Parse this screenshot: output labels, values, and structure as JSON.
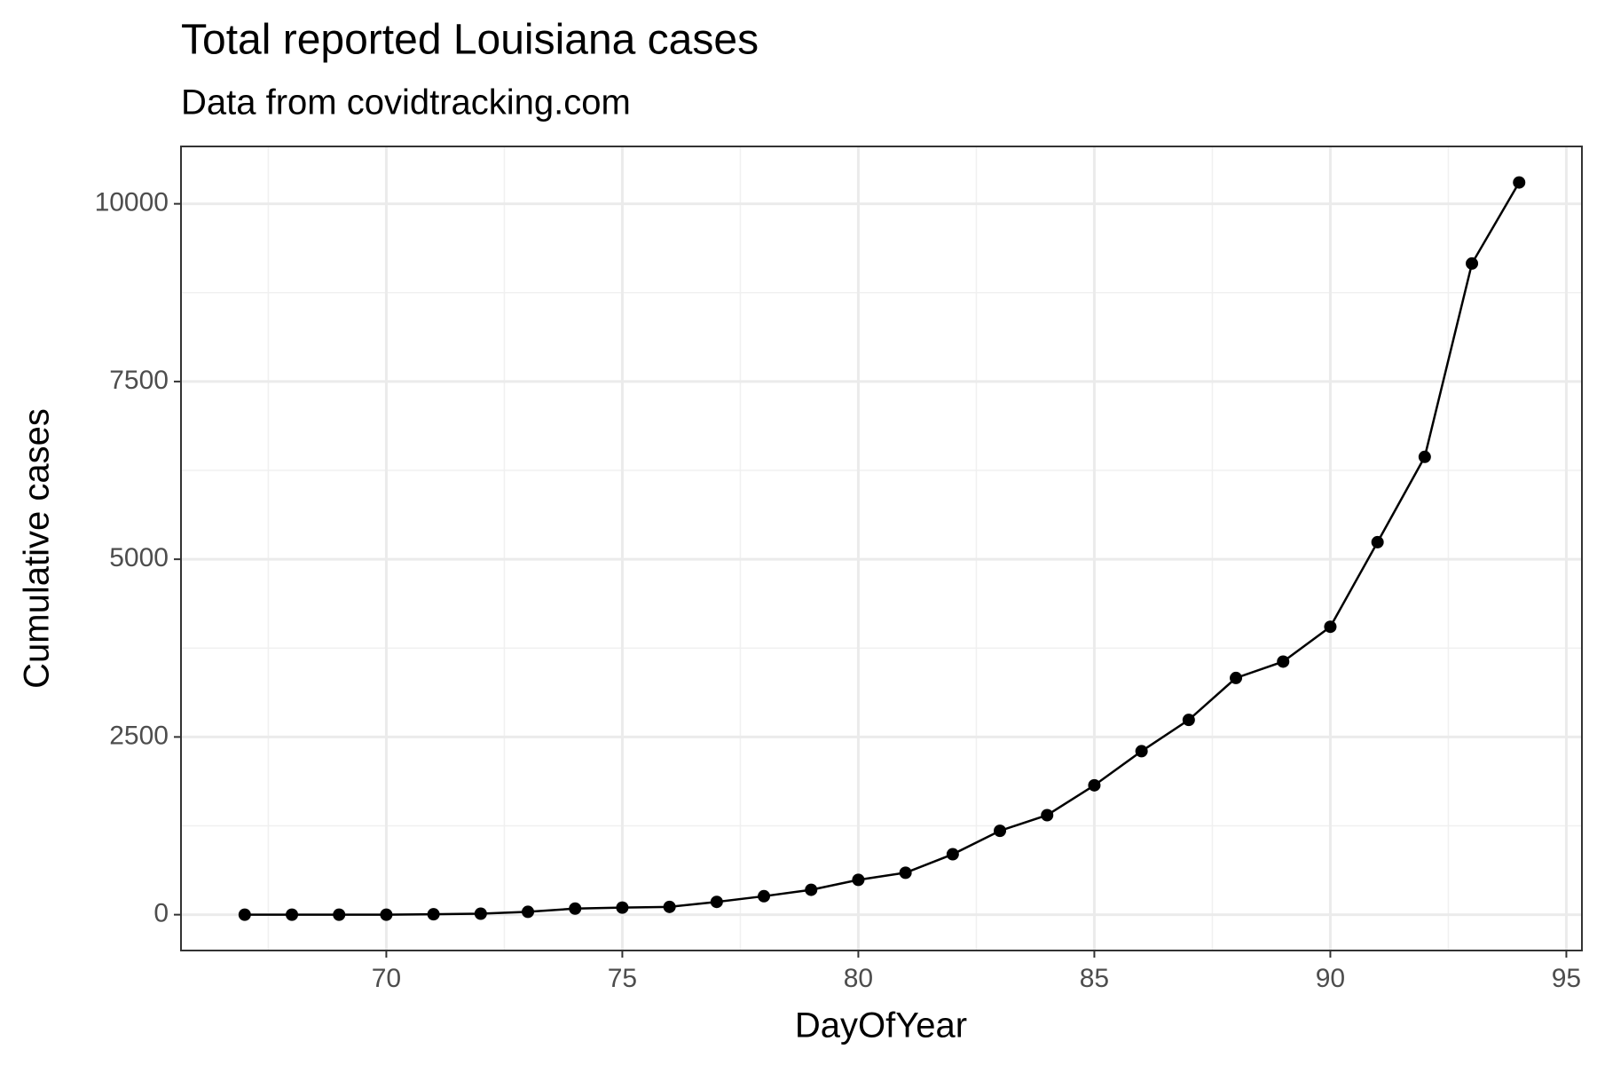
{
  "chart_data": {
    "type": "line",
    "title": "Total reported Louisiana cases",
    "subtitle": "Data from covidtracking.com",
    "x_label": "DayOfYear",
    "y_label": "Cumulative cases",
    "x": [
      67,
      68,
      69,
      70,
      71,
      72,
      73,
      74,
      75,
      76,
      77,
      78,
      79,
      80,
      81,
      82,
      83,
      84,
      85,
      86,
      87,
      88,
      89,
      90,
      91,
      92,
      93,
      94
    ],
    "series": [
      {
        "color": "#000000",
        "values": [
          0,
          0,
          0,
          0,
          6,
          14,
          40,
          86,
          100,
          110,
          180,
          260,
          350,
          490,
          590,
          850,
          1180,
          1400,
          1820,
          2300,
          2740,
          3330,
          3560,
          4050,
          5240,
          6440,
          9160,
          10300
        ]
      }
    ],
    "xlim": [
      65.65,
      95.33
    ],
    "xticks": [
      70,
      75,
      80,
      85,
      90,
      95
    ],
    "ylim": [
      -504,
      10807
    ],
    "yticks": [
      0,
      2500,
      5000,
      7500,
      10000
    ],
    "grid": true,
    "markers": true
  }
}
